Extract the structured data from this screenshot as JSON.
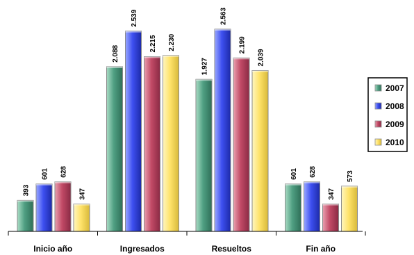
{
  "chart_data": {
    "type": "bar",
    "categories": [
      "Inicio año",
      "Ingresados",
      "Resueltos",
      "Fin año"
    ],
    "series": [
      {
        "name": "2007",
        "values": [
          393,
          2088,
          1927,
          601
        ],
        "labels": [
          "393",
          "2.088",
          "1.927",
          "601"
        ]
      },
      {
        "name": "2008",
        "values": [
          601,
          2539,
          2563,
          628
        ],
        "labels": [
          "601",
          "2.539",
          "2.563",
          "628"
        ]
      },
      {
        "name": "2009",
        "values": [
          628,
          2215,
          2199,
          347
        ],
        "labels": [
          "628",
          "2.215",
          "2.199",
          "347"
        ]
      },
      {
        "name": "2010",
        "values": [
          347,
          2230,
          2039,
          573
        ],
        "labels": [
          "347",
          "2.230",
          "2.039",
          "573"
        ]
      }
    ],
    "ylim": [
      0,
      2650
    ],
    "grid": false,
    "legend": "right",
    "colors": {
      "2007": {
        "light": "#a9dcc4",
        "base": "#4f9f82",
        "dark": "#2f6f58"
      },
      "2008": {
        "light": "#9aa8ff",
        "base": "#3d4ff0",
        "dark": "#1d2aa8"
      },
      "2009": {
        "light": "#e9a0b0",
        "base": "#c24a66",
        "dark": "#8a2a44"
      },
      "2010": {
        "light": "#fff6c0",
        "base": "#ffe36a",
        "dark": "#d8b93a"
      }
    }
  }
}
